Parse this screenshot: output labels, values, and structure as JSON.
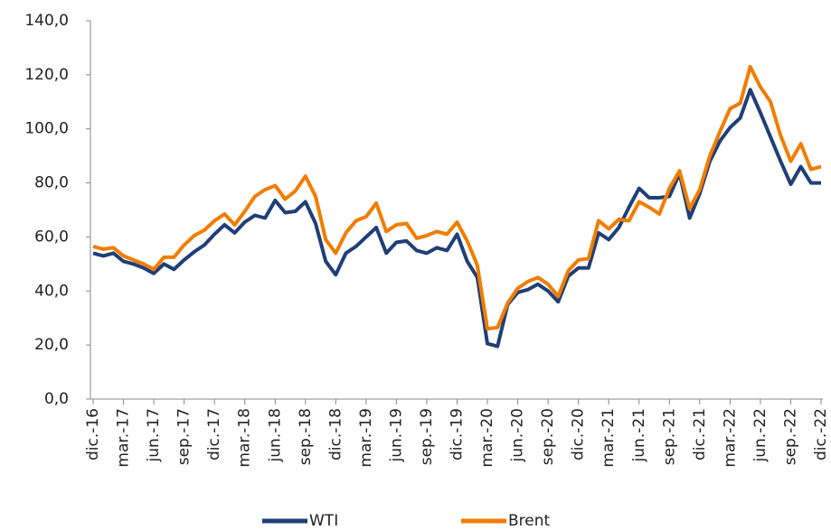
{
  "chart_data": {
    "type": "line",
    "categories": [
      "dic.-16",
      null,
      null,
      "mar.-17",
      null,
      null,
      "jun.-17",
      null,
      null,
      "sep.-17",
      null,
      null,
      "dic.-17",
      null,
      null,
      "mar.-18",
      null,
      null,
      "jun.-18",
      null,
      null,
      "sep.-18",
      null,
      null,
      "dic.-18",
      null,
      null,
      "mar.-19",
      null,
      null,
      "jun.-19",
      null,
      null,
      "sep.-19",
      null,
      null,
      "dic.-19",
      null,
      null,
      "mar.-20",
      null,
      null,
      "jun.-20",
      null,
      null,
      "sep.-20",
      null,
      null,
      "dic.-20",
      null,
      null,
      "mar.-21",
      null,
      null,
      "jun.-21",
      null,
      null,
      "sep.-21",
      null,
      null,
      "dic.-21",
      null,
      null,
      "mar.-22",
      null,
      null,
      "jun.-22",
      null,
      null,
      "sep.-22",
      null,
      null,
      "dic.-22"
    ],
    "series": [
      {
        "name": "WTI",
        "color": "#1f3f77",
        "values": [
          54,
          53,
          54,
          51,
          50,
          48.5,
          46.5,
          50,
          48,
          51.5,
          54.5,
          57,
          61,
          64.5,
          61.5,
          65.5,
          68,
          67,
          73.5,
          69,
          69.5,
          73,
          65,
          51,
          46,
          54,
          56.5,
          60,
          63.5,
          54,
          58,
          58.5,
          55,
          54,
          56,
          55,
          61,
          51,
          45,
          20.5,
          19.5,
          35,
          39.5,
          40.5,
          42.5,
          40,
          36,
          45.5,
          48.5,
          48.5,
          61.5,
          59,
          63.5,
          71,
          78,
          74.5,
          74.5,
          75,
          83.5,
          67,
          76,
          88,
          95.5,
          100.5,
          104,
          114.5,
          106,
          97,
          88,
          79.5,
          86,
          80,
          80
        ]
      },
      {
        "name": "Brent",
        "color": "#f07d00",
        "values": [
          56.5,
          55.5,
          56,
          53,
          51.5,
          50,
          48,
          52.5,
          52.5,
          57,
          60.5,
          62.5,
          66,
          68.5,
          64.5,
          69.5,
          75,
          77.5,
          79,
          74,
          77,
          82.5,
          75,
          59,
          54,
          61.5,
          66,
          67.5,
          72.5,
          62,
          64.5,
          65,
          59.5,
          60.5,
          62,
          61,
          65.5,
          58.5,
          49.5,
          26,
          26.5,
          35.5,
          41,
          43.5,
          45,
          42.5,
          38,
          47.5,
          51.5,
          52,
          66,
          63,
          66.5,
          66,
          73,
          71,
          68.5,
          78,
          84.5,
          70.5,
          77.5,
          90,
          99,
          107.5,
          109.5,
          123,
          115.5,
          110,
          97.5,
          88,
          94.5,
          85,
          86
        ]
      }
    ],
    "ylim": [
      0,
      140
    ],
    "yticks": [
      {
        "value": 0,
        "label": "0,0"
      },
      {
        "value": 20,
        "label": "20,0"
      },
      {
        "value": 40,
        "label": "40,0"
      },
      {
        "value": 60,
        "label": "60,0"
      },
      {
        "value": 80,
        "label": "80,0"
      },
      {
        "value": 100,
        "label": "100,0"
      },
      {
        "value": 120,
        "label": "120,0"
      },
      {
        "value": 140,
        "label": "140,0"
      }
    ],
    "grid": false,
    "legend": "bottom"
  }
}
